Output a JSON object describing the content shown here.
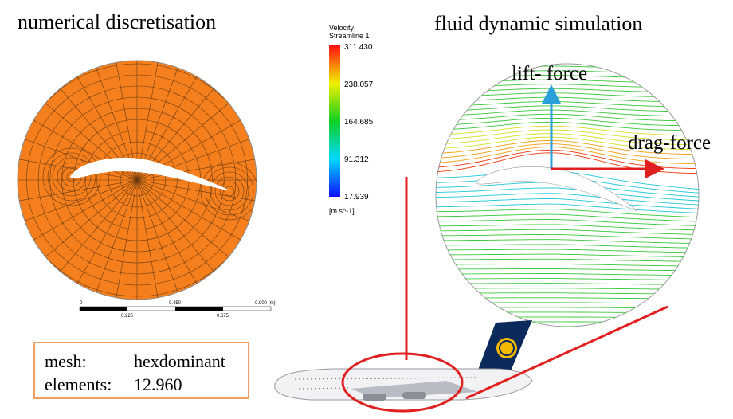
{
  "left_panel": {
    "title": "numerical discretisation",
    "scale_bar": {
      "labels_top": [
        "0",
        "0.450",
        "0.900 (m)"
      ],
      "labels_bottom": [
        "0.225",
        "0.675"
      ]
    }
  },
  "legend": {
    "title": "Velocity",
    "subtitle": "Streamline 1",
    "ticks": [
      "311.430",
      "238.057",
      "164.685",
      "91.312",
      "17.939"
    ],
    "unit": "[m s^-1]"
  },
  "right_panel": {
    "title": "fluid dynamic simulation",
    "lift_label": "lift- force",
    "drag_label": "drag-force"
  },
  "mesh_info": {
    "rows": [
      [
        "mesh:",
        "hexdominant"
      ],
      [
        "elements:",
        "12.960"
      ]
    ]
  }
}
